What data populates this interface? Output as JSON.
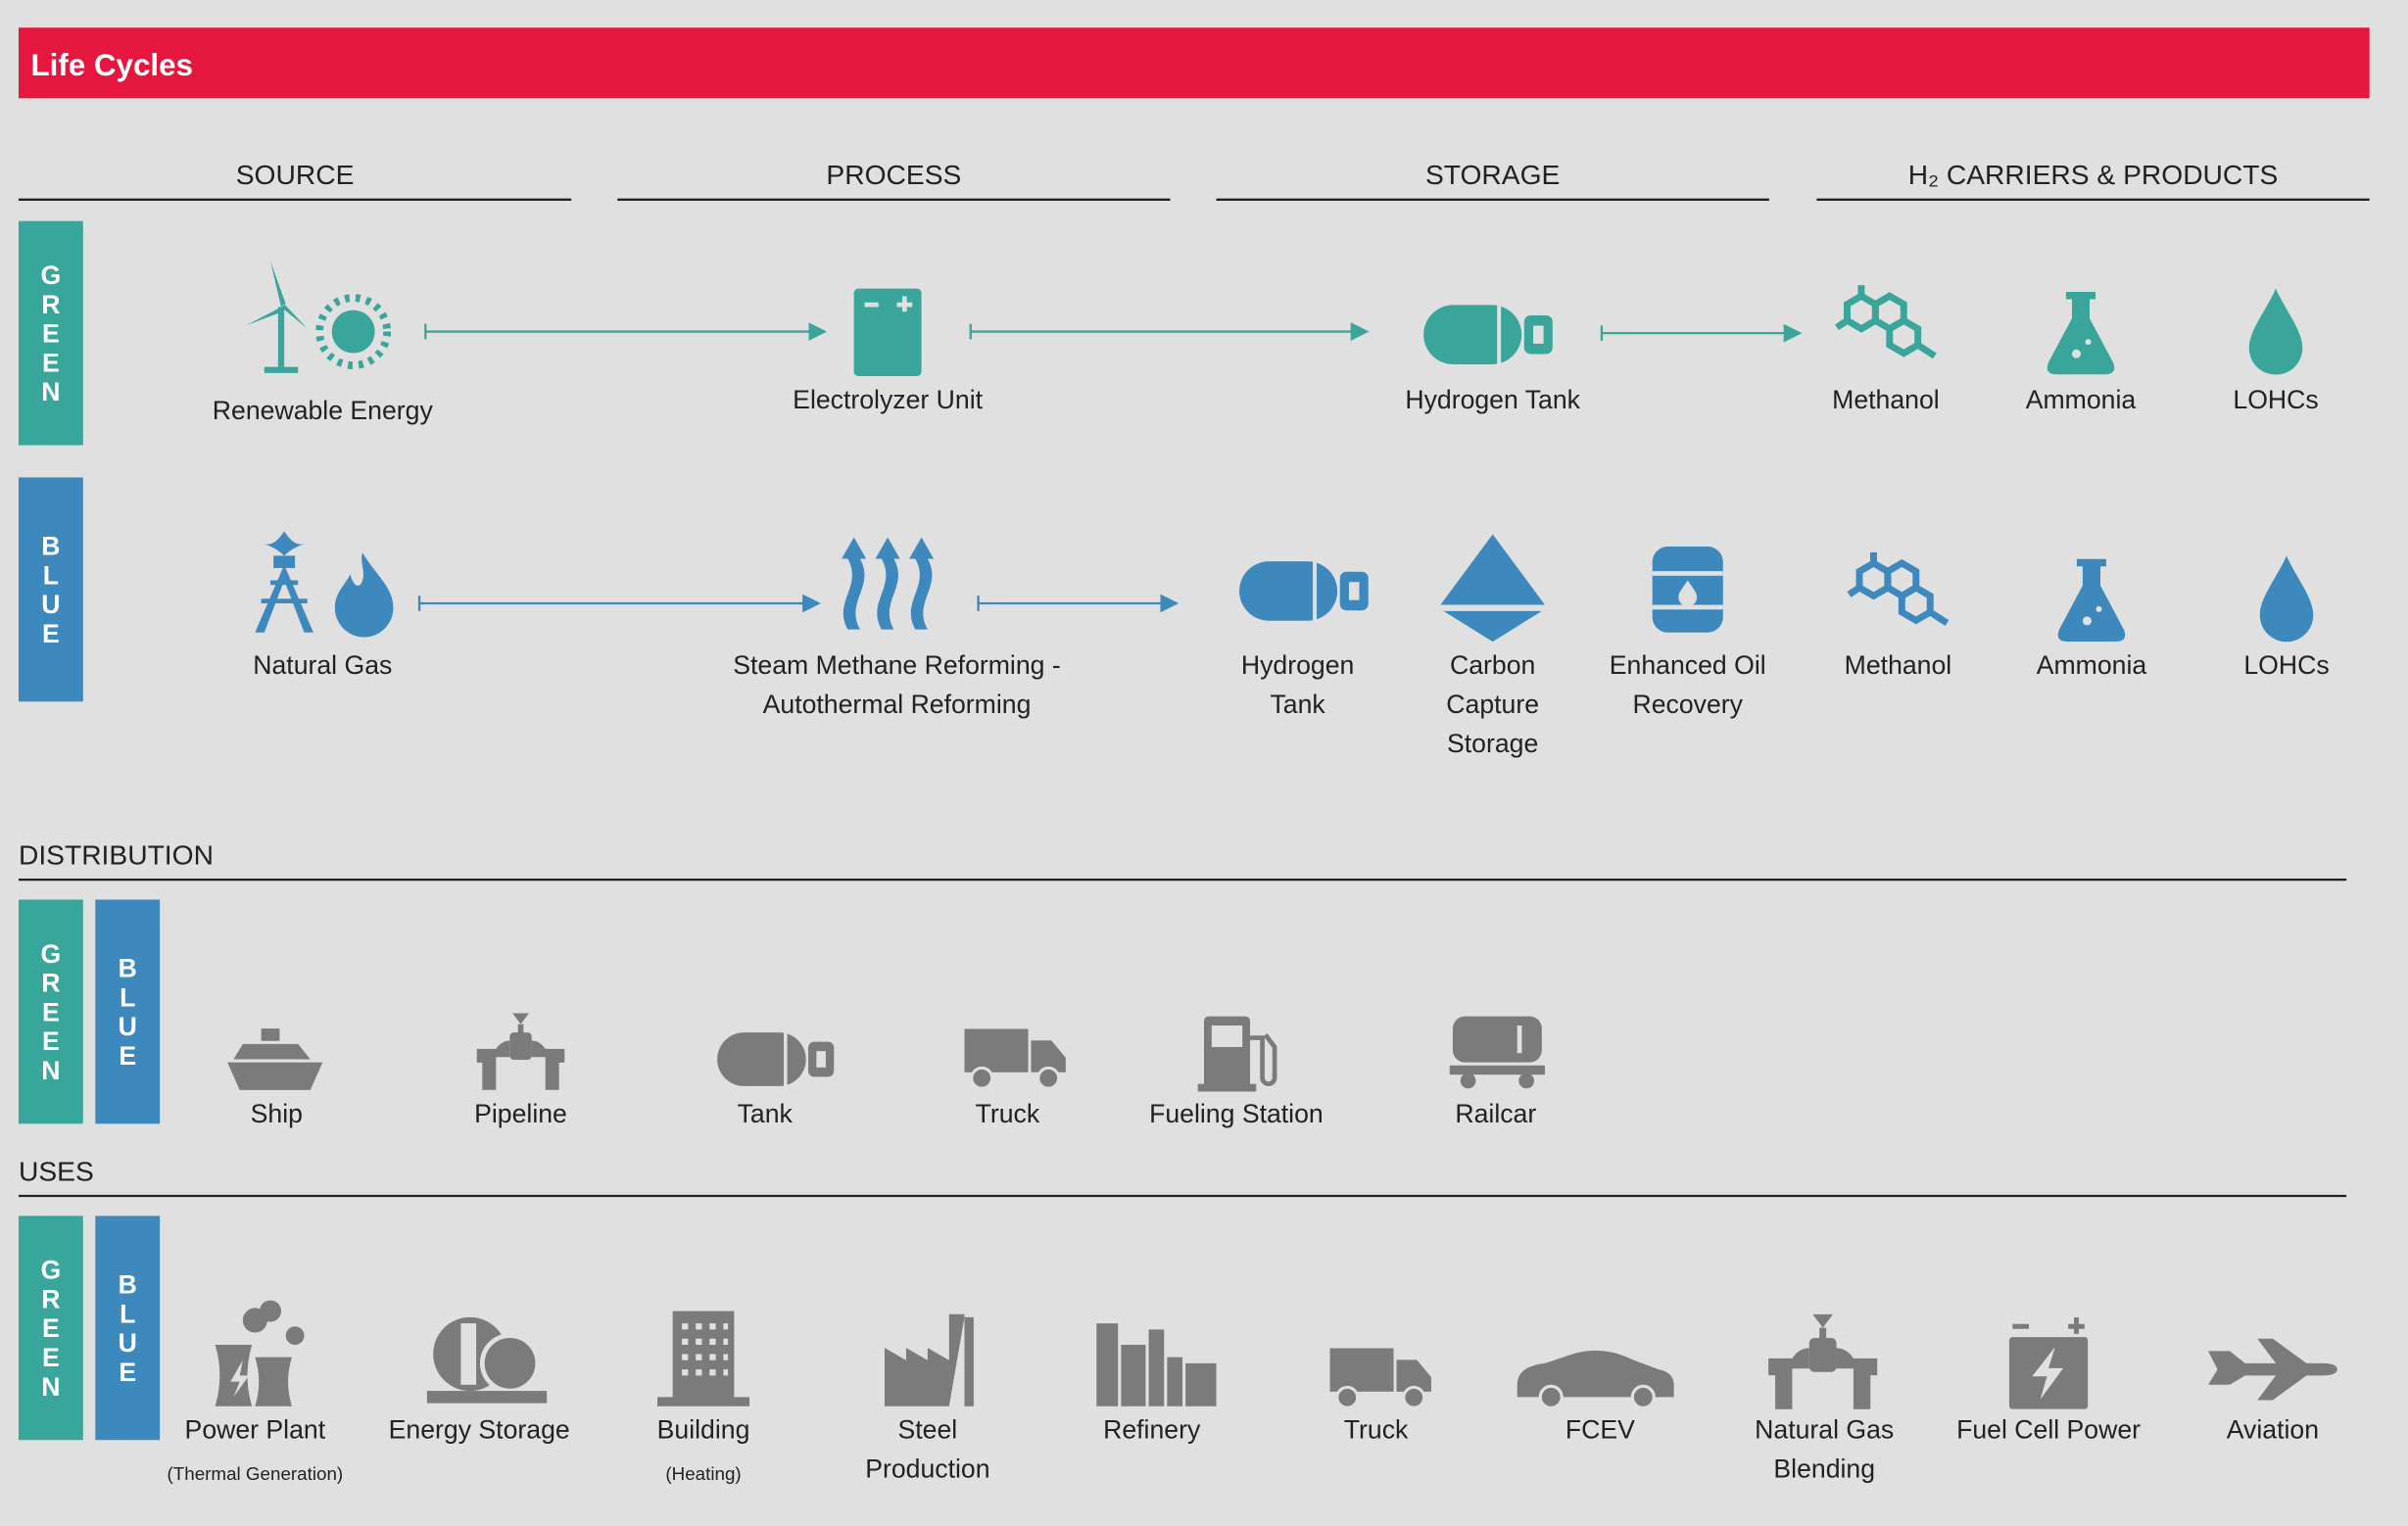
{
  "header": {
    "title": "Life Cycles"
  },
  "columns": [
    "SOURCE",
    "PROCESS",
    "STORAGE",
    "H₂ CARRIERS & PRODUCTS"
  ],
  "production": {
    "green": {
      "label": "GREEN",
      "items": [
        [
          "Renewable Energy"
        ],
        [
          "Electrolyzer Unit"
        ],
        [
          "Hydrogen Tank"
        ],
        [
          "Methanol"
        ],
        [
          "Ammonia"
        ],
        [
          "LOHCs"
        ]
      ]
    },
    "blue": {
      "label": "BLUE",
      "items": [
        [
          "Natural Gas"
        ],
        [
          "Steam Methane Reforming -",
          "Autothermal Reforming"
        ],
        [
          "Hydrogen",
          "Tank"
        ],
        [
          "Carbon",
          "Capture",
          "Storage"
        ],
        [
          "Enhanced Oil",
          "Recovery"
        ],
        [
          "Methanol"
        ],
        [
          "Ammonia"
        ],
        [
          "LOHCs"
        ]
      ]
    }
  },
  "distribution": {
    "title": "DISTRIBUTION",
    "tags": [
      "GREEN",
      "BLUE"
    ],
    "items": [
      [
        "Ship"
      ],
      [
        "Pipeline"
      ],
      [
        "Tank"
      ],
      [
        "Truck"
      ],
      [
        "Fueling Station"
      ],
      [
        "Railcar"
      ]
    ]
  },
  "uses": {
    "title": "USES",
    "tags": [
      "GREEN",
      "BLUE"
    ],
    "items": [
      [
        "Power Plant",
        "(Thermal Generation)"
      ],
      [
        "Energy Storage"
      ],
      [
        "Building",
        "(Heating)"
      ],
      [
        "Steel",
        "Production"
      ],
      [
        "Refinery"
      ],
      [
        "Truck"
      ],
      [
        "FCEV"
      ],
      [
        "Natural Gas",
        "Blending"
      ],
      [
        "Fuel Cell Power"
      ],
      [
        "Aviation"
      ]
    ]
  }
}
